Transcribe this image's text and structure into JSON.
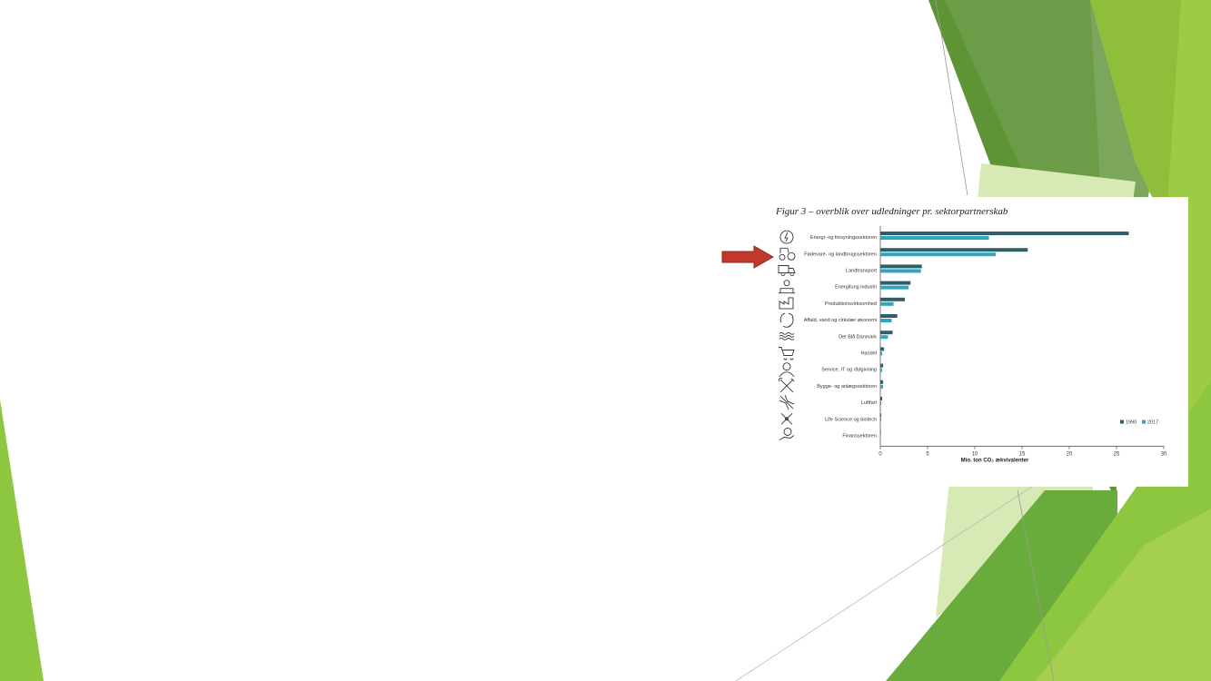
{
  "figure": {
    "title": "Figur 3 – overblik over udledninger pr. sektorpartnerskab"
  },
  "chart_data": {
    "type": "bar",
    "orientation": "horizontal",
    "categories": [
      "Energi- og forsyningssektoren",
      "Fødevare- og landbrugssektoren",
      "Landtransport",
      "Energitung industri",
      "Produktionsvirksomhed",
      "Affald, vand og cirkulær økonomi",
      "Det Blå Danmark",
      "Handel",
      "Service, IT og rådgivning",
      "Bygge- og anlægssektoren",
      "Luftfart",
      "Life Science og biotech",
      "Finanssektoren"
    ],
    "icons": [
      "lightning-icon",
      "tractor-icon",
      "truck-icon",
      "factory-worker-icon",
      "production-icon",
      "recycle-icon",
      "waves-icon",
      "shopping-cart-icon",
      "consultant-icon",
      "tools-icon",
      "airplane-icon",
      "molecule-icon",
      "finance-hand-icon"
    ],
    "series": [
      {
        "name": "1990",
        "color": "#2f5f6b",
        "values": [
          26.3,
          15.6,
          4.4,
          3.2,
          2.6,
          1.8,
          1.3,
          0.4,
          0.3,
          0.3,
          0.2,
          0.1,
          0.05
        ]
      },
      {
        "name": "2017",
        "color": "#2fa6c0",
        "values": [
          11.5,
          12.2,
          4.3,
          3.0,
          1.4,
          1.2,
          0.8,
          0.2,
          0.2,
          0.3,
          0.1,
          0.1,
          0.03
        ]
      }
    ],
    "xlim": [
      0,
      30
    ],
    "xticks": [
      0,
      5,
      10,
      15,
      20,
      25,
      30
    ],
    "xlabel": "Mio. ton CO₂ ækvivalenter",
    "legend_position": "bottom-right",
    "grid": false,
    "highlight_category": "Fødevare- og landbrugssektoren",
    "highlight_color": "#c0392b"
  }
}
